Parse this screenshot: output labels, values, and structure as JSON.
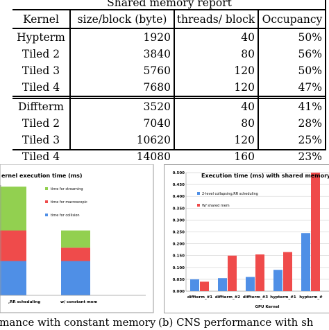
{
  "table": {
    "title": "Shared memory report",
    "headers": [
      "Kernel",
      "size/block (byte)",
      "threads/ block",
      "Occupancy"
    ],
    "groups": [
      [
        [
          "Hypterm",
          "1920",
          "40",
          "50%"
        ],
        [
          "Tiled 2",
          "3840",
          "80",
          "56%"
        ],
        [
          "Tiled 3",
          "5760",
          "120",
          "50%"
        ],
        [
          "Tiled 4",
          "7680",
          "120",
          "47%"
        ]
      ],
      [
        [
          "Diffterm",
          "3520",
          "40",
          "41%"
        ],
        [
          "Tiled 2",
          "7040",
          "80",
          "28%"
        ],
        [
          "Tiled 3",
          "10620",
          "120",
          "25%"
        ],
        [
          "Tiled 4",
          "14080",
          "160",
          "23%"
        ]
      ]
    ]
  },
  "left_chart": {
    "title": "ernel execution time (ms)",
    "legend": [
      {
        "label": "time for streaming",
        "color": "#92d050"
      },
      {
        "label": "time for macroscopic",
        "color": "#ef4b4b"
      },
      {
        "label": "time for collision",
        "color": "#4f8fe6"
      }
    ],
    "categories": [
      ",RR scheduling",
      "w/ constant mem"
    ],
    "chart_data": {
      "type": "bar",
      "stacked": true,
      "categories": [
        ",RR scheduling",
        "w/ constant mem"
      ],
      "series": [
        {
          "name": "time for collision",
          "values": [
            0.9,
            0.9
          ]
        },
        {
          "name": "time for macroscopic",
          "values": [
            0.8,
            0.35
          ]
        },
        {
          "name": "time for streaming",
          "values": [
            1.15,
            0.45
          ]
        }
      ]
    }
  },
  "right_chart": {
    "title": "Execution time (ms) with shared memory us",
    "legend": [
      {
        "label": "2-level collapsing,RR scheduling",
        "color": "#4f8fe6"
      },
      {
        "label": "W/ shared mem",
        "color": "#ef4b4b"
      }
    ],
    "xlabel": "GPU Kernel",
    "chart_data": {
      "type": "bar",
      "categories": [
        "diffterm_#1",
        "diffterm_#2",
        "diffterm_#3",
        "hypterm_#1",
        "hypterm_#"
      ],
      "series": [
        {
          "name": "2-level collapsing,RR scheduling",
          "values": [
            0.05,
            0.055,
            0.06,
            0.09,
            0.245
          ]
        },
        {
          "name": "W/ shared mem",
          "values": [
            0.04,
            0.15,
            0.155,
            0.165,
            0.5
          ]
        }
      ],
      "yticks": [
        "0.000",
        "0.050",
        "0.100",
        "0.150",
        "0.200",
        "0.250",
        "0.300",
        "0.350",
        "0.400",
        "0.450",
        "0.500"
      ],
      "ylim": [
        0,
        0.5
      ],
      "xlabel": "GPU Kernel"
    }
  },
  "captions": {
    "a": "rmance with constant memory",
    "b": "(b) CNS performance with sh"
  }
}
